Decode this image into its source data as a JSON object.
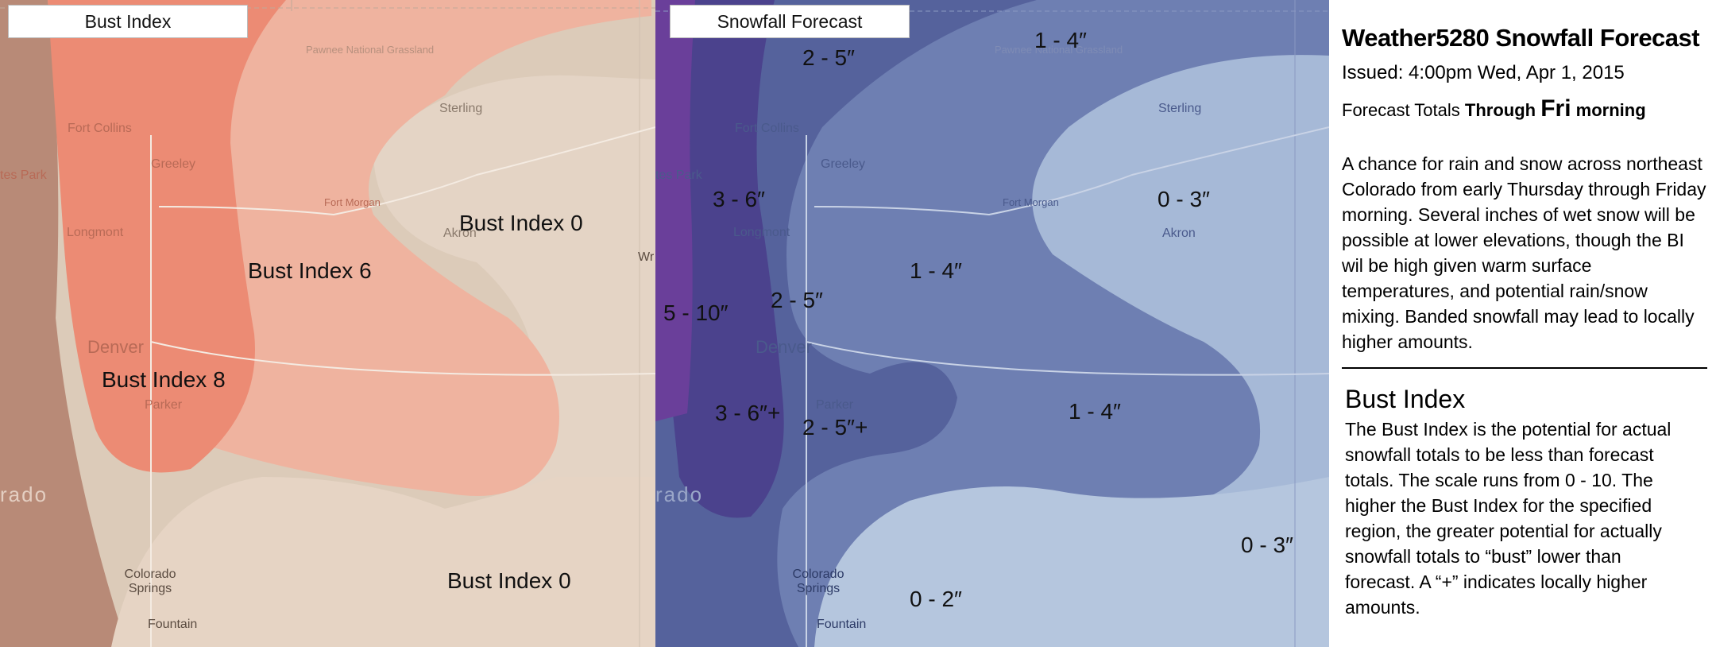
{
  "left_panel": {
    "tab_label": "Bust Index",
    "regions": [
      {
        "id": "bi8",
        "label": "Bust Index 8",
        "fill": "#ec8b74"
      },
      {
        "id": "bi6",
        "label": "Bust Index 6",
        "fill": "#eeb09e"
      },
      {
        "id": "bi0_north",
        "label": "Bust Index 0",
        "fill": "#e6d3c3"
      },
      {
        "id": "bi0_south",
        "label": "Bust Index 0",
        "fill": "#e6d3c3"
      }
    ],
    "places": {
      "pawnee": "Pawnee National Grassland",
      "sterling": "Sterling",
      "fort_collins": "Fort Collins",
      "estes_park": "tes Park",
      "greeley": "Greeley",
      "fort_morgan": "Fort Morgan",
      "akron": "Akron",
      "longmont": "Longmont",
      "denver": "Denver",
      "parker": "Parker",
      "colorado": "rado",
      "colorado_springs": "Colorado Springs",
      "fountain": "Fountain",
      "wr": "Wr"
    }
  },
  "right_panel": {
    "tab_label": "Snowfall Forecast",
    "amounts": {
      "a1": "2 - 5″",
      "a2": "1 - 4″",
      "a3": "3 - 6″",
      "a4": "0 - 3″",
      "a5": "1 - 4″",
      "a6": "2 - 5″",
      "a7": "5 - 10″",
      "a8": "3 - 6″+",
      "a9": "2 - 5″+",
      "a10": "1 - 4″",
      "a11": "0 - 3″",
      "a12": "0 - 2″"
    },
    "colors": {
      "band_0_3": "#a5b8d6",
      "band_1_4": "#6575a9",
      "band_2_5": "#505a97",
      "band_3_6": "#4a3f8c",
      "band_5_10": "#6a3f9a",
      "band_0_2": "#b5c6de"
    },
    "places": {
      "pawnee": "Pawnee National Grassland",
      "sterling": "Sterling",
      "fort_collins": "Fort Collins",
      "estes_park": "tes Park",
      "greeley": "Greeley",
      "fort_morgan": "Fort Morgan",
      "akron": "Akron",
      "longmont": "Longmont",
      "denver": "Denver",
      "parker": "Parker",
      "colorado": "rado",
      "colorado_springs": "Colorado Springs",
      "fountain": "Fountain"
    }
  },
  "info": {
    "title": "Weather5280 Snowfall Forecast",
    "issued": "Issued:  4:00pm Wed, Apr 1, 2015",
    "through_prefix": "Forecast Totals ",
    "through_word": "Through ",
    "through_day": "Fri",
    "through_time": " morning",
    "description": "A chance for rain and snow across northeast Colorado from early Thursday through Friday morning. Several inches of wet snow will be possible at lower elevations, though the BI wil be high given warm surface temperatures, and potential rain/snow mixing.  Banded snowfall may lead to locally higher amounts.",
    "bust_heading": "Bust Index",
    "bust_description": "The Bust Index is the potential for actual snowfall totals to be less than forecast totals. The scale runs from 0 - 10. The higher the Bust Index for the specified region, the greater potential for actually snowfall totals to “bust” lower than forecast. A “+” indicates locally higher amounts."
  }
}
